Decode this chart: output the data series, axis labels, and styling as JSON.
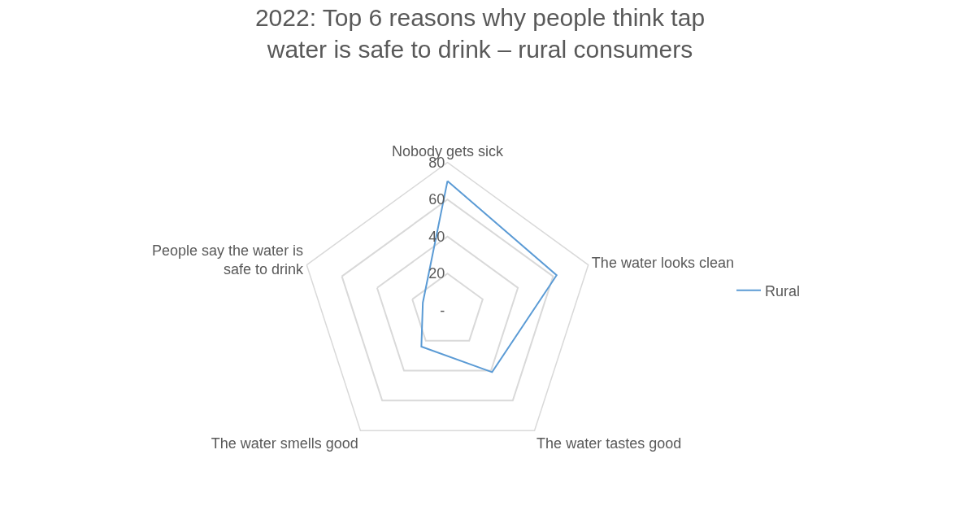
{
  "chart_data": {
    "type": "radar",
    "title": "2022: Top 6 reasons why people think tap water is safe to drink – rural consumers",
    "categories": [
      "Nobody gets sick",
      "The water looks clean",
      "The water tastes good",
      "The water smells good",
      "People say the water is safe to drink"
    ],
    "series": [
      {
        "name": "Rural",
        "color": "#5b9bd5",
        "values": [
          70,
          62,
          41,
          24,
          14
        ]
      }
    ],
    "ylim": [
      0,
      80
    ],
    "yticks": [
      {
        "value": 0,
        "label": "-"
      },
      20,
      40,
      60,
      80
    ],
    "grid": true,
    "legend": "right",
    "marker": "none",
    "line_style": "solid"
  }
}
